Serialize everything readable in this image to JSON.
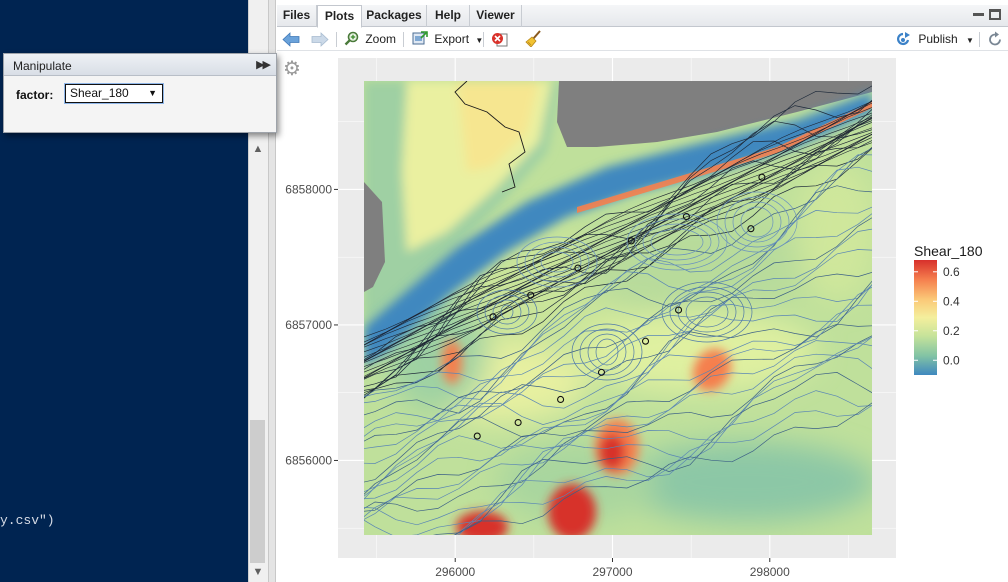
{
  "console": {
    "visible_text": "y.csv\")"
  },
  "manipulate": {
    "title": "Manipulate",
    "factor_label": "factor:",
    "factor_value": "Shear_180"
  },
  "tabs": [
    {
      "label": "Files",
      "active": false
    },
    {
      "label": "Plots",
      "active": true
    },
    {
      "label": "Packages",
      "active": false
    },
    {
      "label": "Help",
      "active": false
    },
    {
      "label": "Viewer",
      "active": false
    }
  ],
  "toolbar": {
    "zoom_label": "Zoom",
    "export_label": "Export",
    "publish_label": "Publish"
  },
  "icons": {
    "back": "arrow-left-icon",
    "forward": "arrow-right-icon",
    "zoom": "magnifier-icon",
    "export": "export-icon",
    "remove": "remove-plot-icon",
    "clear": "broom-icon",
    "publish": "publish-icon",
    "refresh": "refresh-icon",
    "gear": "gear-icon"
  },
  "chart_data": {
    "type": "heatmap",
    "title": "",
    "xlabel": "",
    "ylabel": "",
    "x_ticks": [
      "296000",
      "297000",
      "298000"
    ],
    "x_tick_values": [
      296000,
      297000,
      298000
    ],
    "y_ticks": [
      "6856000",
      "6857000",
      "6858000"
    ],
    "y_tick_values": [
      6856000,
      6857000,
      6858000
    ],
    "xlim": [
      295420,
      298650
    ],
    "ylim": [
      6855450,
      6858800
    ],
    "legend": {
      "title": "Shear_180",
      "position": "right",
      "ticks": [
        "0.6",
        "0.4",
        "0.2",
        "0.0"
      ],
      "tick_values": [
        0.6,
        0.4,
        0.2,
        0.0
      ],
      "range": [
        -0.1,
        0.68
      ],
      "colors": [
        "#d7302b",
        "#f57f4e",
        "#fbc877",
        "#f4ef9d",
        "#c6e39a",
        "#83c4a4",
        "#3f88bf"
      ]
    },
    "grid": true,
    "points": [
      {
        "x": 297950,
        "y": 6858090
      },
      {
        "x": 297470,
        "y": 6857800
      },
      {
        "x": 297880,
        "y": 6857710
      },
      {
        "x": 297120,
        "y": 6857620
      },
      {
        "x": 296780,
        "y": 6857420
      },
      {
        "x": 296480,
        "y": 6857220
      },
      {
        "x": 296240,
        "y": 6857060
      },
      {
        "x": 297420,
        "y": 6857110
      },
      {
        "x": 297210,
        "y": 6856880
      },
      {
        "x": 296930,
        "y": 6856650
      },
      {
        "x": 296670,
        "y": 6856450
      },
      {
        "x": 296400,
        "y": 6856280
      },
      {
        "x": 296140,
        "y": 6856180
      }
    ]
  }
}
